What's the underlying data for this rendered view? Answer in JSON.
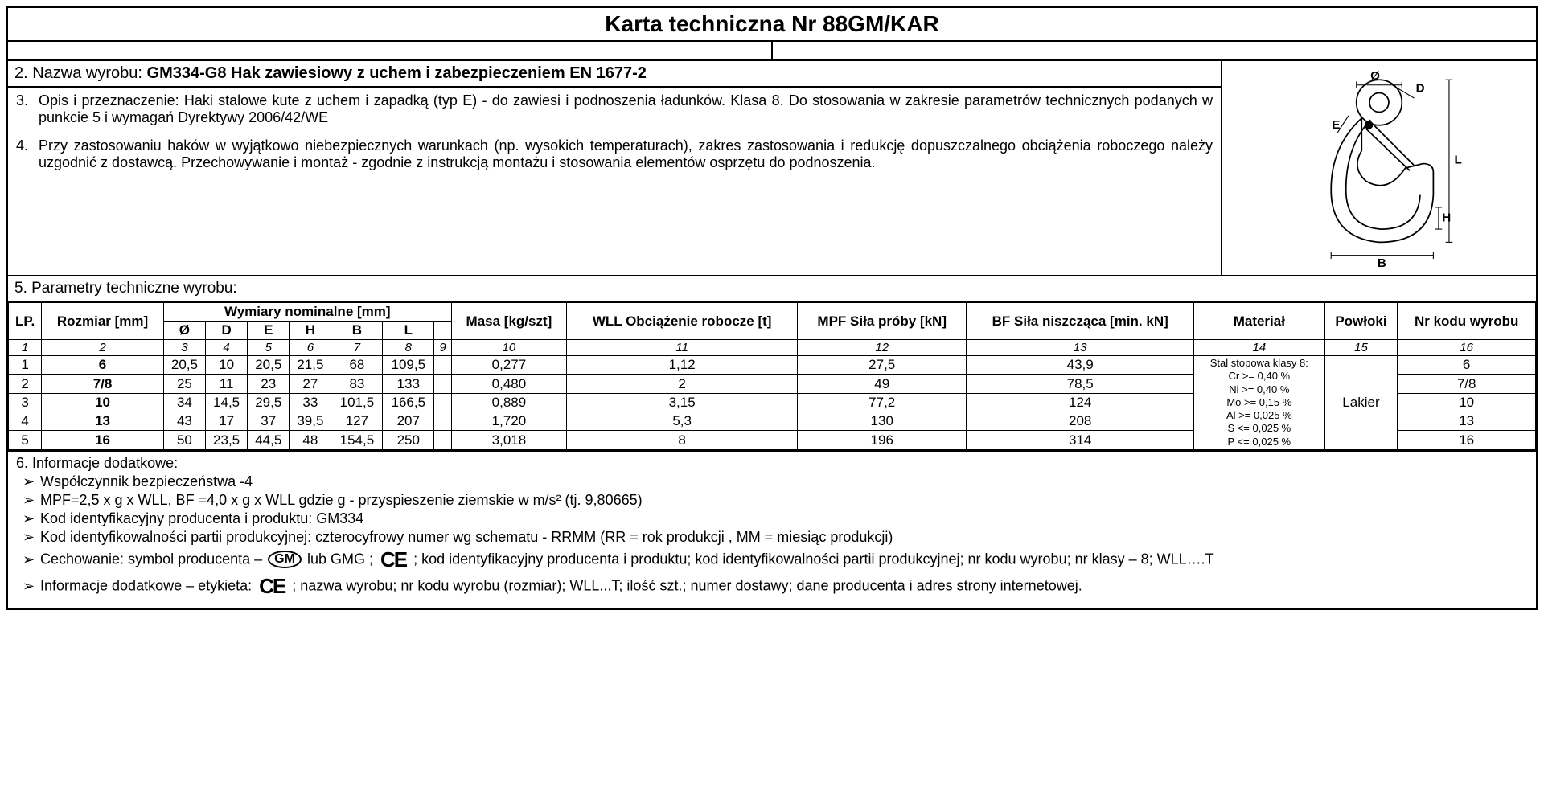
{
  "title": "Karta techniczna  Nr 88GM/KAR",
  "section2": {
    "label": "2. Nazwa wyrobu: ",
    "product_name": "GM334-G8 Hak zawiesiowy z uchem i zabezpieczeniem EN 1677-2"
  },
  "section3": {
    "num": "3.",
    "text": "Opis i przeznaczenie: Haki stalowe kute z uchem i zapadką (typ E) - do zawiesi i podnoszenia ładunków. Klasa 8. Do stosowania w zakresie parametrów technicznych podanych w punkcie 5 i wymagań Dyrektywy 2006/42/WE"
  },
  "section4": {
    "num": "4.",
    "text": "Przy zastosowaniu haków w wyjątkowo niebezpiecznych warunkach (np. wysokich temperaturach), zakres zastosowania i redukcję dopuszczalnego obciążenia roboczego należy uzgodnić z dostawcą. Przechowywanie i montaż - zgodnie z instrukcją montażu i stosowania elementów osprzętu do podnoszenia."
  },
  "section5_header": "5. Parametry techniczne wyrobu:",
  "table": {
    "headers": {
      "lp": "LP.",
      "rozmiar": "Rozmiar [mm]",
      "wymiary_group": "Wymiary nominalne [mm]",
      "dims": [
        "Ø",
        "D",
        "E",
        "H",
        "B",
        "L",
        ""
      ],
      "masa": "Masa [kg/szt]",
      "wll": "WLL Obciążenie robocze [t]",
      "mpf": "MPF Siła próby [kN]",
      "bf": "BF Siła niszcząca [min. kN]",
      "material": "Materiał",
      "powloki": "Powłoki",
      "kod": "Nr kodu wyrobu"
    },
    "index_row": [
      "1",
      "2",
      "3",
      "4",
      "5",
      "6",
      "7",
      "8",
      "9",
      "10",
      "11",
      "12",
      "13",
      "14",
      "15",
      "16"
    ],
    "rows": [
      {
        "lp": "1",
        "rozmiar": "6",
        "o": "20,5",
        "d": "10",
        "e": "20,5",
        "h": "21,5",
        "b": "68",
        "l": "109,5",
        "c9": "",
        "masa": "0,277",
        "wll": "1,12",
        "mpf": "27,5",
        "bf": "43,9",
        "kod": "6"
      },
      {
        "lp": "2",
        "rozmiar": "7/8",
        "o": "25",
        "d": "11",
        "e": "23",
        "h": "27",
        "b": "83",
        "l": "133",
        "c9": "",
        "masa": "0,480",
        "wll": "2",
        "mpf": "49",
        "bf": "78,5",
        "kod": "7/8"
      },
      {
        "lp": "3",
        "rozmiar": "10",
        "o": "34",
        "d": "14,5",
        "e": "29,5",
        "h": "33",
        "b": "101,5",
        "l": "166,5",
        "c9": "",
        "masa": "0,889",
        "wll": "3,15",
        "mpf": "77,2",
        "bf": "124",
        "kod": "10"
      },
      {
        "lp": "4",
        "rozmiar": "13",
        "o": "43",
        "d": "17",
        "e": "37",
        "h": "39,5",
        "b": "127",
        "l": "207",
        "c9": "",
        "masa": "1,720",
        "wll": "5,3",
        "mpf": "130",
        "bf": "208",
        "kod": "13"
      },
      {
        "lp": "5",
        "rozmiar": "16",
        "o": "50",
        "d": "23,5",
        "e": "44,5",
        "h": "48",
        "b": "154,5",
        "l": "250",
        "c9": "",
        "masa": "3,018",
        "wll": "8",
        "mpf": "196",
        "bf": "314",
        "kod": "16"
      }
    ],
    "material_lines": [
      "Stal stopowa klasy 8:",
      "Cr >= 0,40 %",
      "Ni >= 0,40 %",
      "Mo >= 0,15 %",
      "Al >= 0,025 %",
      "S <= 0,025 %",
      "P <= 0,025 %"
    ],
    "powloki_value": "Lakier"
  },
  "section6": {
    "title": "6. Informacje dodatkowe:",
    "bullets": [
      "Współczynnik bezpieczeństwa -4",
      "MPF=2,5 x g x WLL, BF =4,0 x g x WLL     gdzie g - przyspieszenie ziemskie w m/s² (tj. 9,80665)",
      "Kod identyfikacyjny producenta i produktu: GM334",
      "Kod identyfikowalności partii produkcyjnej: czterocyfrowy numer wg schematu - RRMM (RR  = rok produkcji , MM = miesiąc produkcji)"
    ],
    "marking_prefix": "Cechowanie:  symbol producenta  – ",
    "marking_mid": " lub GMG ; ",
    "marking_suffix": " ;  kod identyfikacyjny producenta i produktu; kod identyfikowalności partii produkcyjnej; nr kodu wyrobu; nr klasy – 8; WLL….T",
    "label_prefix": "Informacje dodatkowe – etykieta: ",
    "label_suffix": " ;  nazwa wyrobu; nr kodu wyrobu (rozmiar); WLL...T; ilość szt.; numer dostawy; dane producenta i adres strony internetowej."
  },
  "diagram": {
    "labels": {
      "O": "Ø",
      "D": "D",
      "E": "E",
      "H": "H",
      "B": "B",
      "L": "L"
    }
  }
}
